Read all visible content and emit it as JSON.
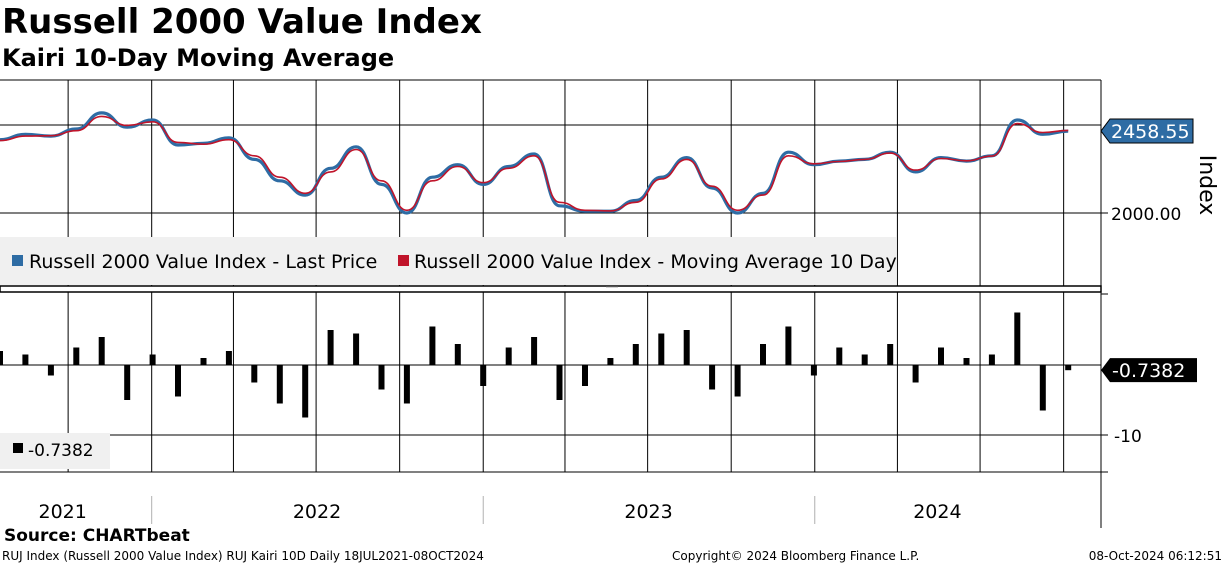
{
  "header": {
    "title": "Russell 2000 Value Index",
    "subtitle": "Kairi 10-Day Moving Average"
  },
  "footer": {
    "source": "Source: CHARTbeat",
    "description": "RUJ Index (Russell 2000 Value Index) RUJ Kairi 10D  Daily 18JUL2021-08OCT2024",
    "copyright": "Copyright© 2024 Bloomberg Finance L.P.",
    "timestamp": "08-Oct-2024 06:12:51"
  },
  "colors": {
    "price": "#2e6ca4",
    "ma": "#c0142a",
    "bars": "#000000",
    "badge": "#2e6ca4",
    "badge_dark": "#000000",
    "legend_bg": "#f0f0f0"
  },
  "chart_data": [
    {
      "type": "line",
      "x_start": "2021-07-18",
      "x_end": "2024-10-08",
      "x_ticks": [
        "2021",
        "2022",
        "2023",
        "2024"
      ],
      "y_ticks": [
        "2000.00"
      ],
      "ylabel": "Index",
      "last_value_label": "2458.55",
      "legend": [
        {
          "name": "Russell 2000 Value Index - Last Price",
          "color": "#2e6ca4"
        },
        {
          "name": "Russell 2000 Value Index - Moving Average 10 Day",
          "color": "#c0142a"
        }
      ],
      "series": [
        {
          "name": "Russell 2000 Value Index - Last Price",
          "x": [
            "2021-07-18",
            "2021-08-15",
            "2021-09-12",
            "2021-10-10",
            "2021-11-07",
            "2021-12-05",
            "2022-01-02",
            "2022-01-30",
            "2022-02-27",
            "2022-03-27",
            "2022-04-24",
            "2022-05-22",
            "2022-06-19",
            "2022-07-17",
            "2022-08-14",
            "2022-09-11",
            "2022-10-09",
            "2022-11-06",
            "2022-12-04",
            "2023-01-01",
            "2023-01-29",
            "2023-02-26",
            "2023-03-26",
            "2023-04-23",
            "2023-05-21",
            "2023-06-18",
            "2023-07-16",
            "2023-08-13",
            "2023-09-10",
            "2023-10-08",
            "2023-11-05",
            "2023-12-03",
            "2023-12-31",
            "2024-01-28",
            "2024-02-25",
            "2024-03-24",
            "2024-04-21",
            "2024-05-19",
            "2024-06-16",
            "2024-07-14",
            "2024-08-11",
            "2024-09-08",
            "2024-10-06"
          ],
          "values": [
            2410,
            2440,
            2430,
            2470,
            2560,
            2480,
            2520,
            2380,
            2390,
            2420,
            2300,
            2180,
            2100,
            2250,
            2370,
            2160,
            2000,
            2200,
            2270,
            2160,
            2260,
            2330,
            2040,
            2010,
            2010,
            2070,
            2200,
            2310,
            2140,
            2000,
            2110,
            2340,
            2270,
            2290,
            2300,
            2340,
            2230,
            2310,
            2290,
            2320,
            2520,
            2440,
            2458
          ]
        },
        {
          "name": "Russell 2000 Value Index - Moving Average 10 Day",
          "x": [
            "2021-07-18",
            "2021-08-15",
            "2021-09-12",
            "2021-10-10",
            "2021-11-07",
            "2021-12-05",
            "2022-01-02",
            "2022-01-30",
            "2022-02-27",
            "2022-03-27",
            "2022-04-24",
            "2022-05-22",
            "2022-06-19",
            "2022-07-17",
            "2022-08-14",
            "2022-09-11",
            "2022-10-09",
            "2022-11-06",
            "2022-12-04",
            "2023-01-01",
            "2023-01-29",
            "2023-02-26",
            "2023-03-26",
            "2023-04-23",
            "2023-05-21",
            "2023-06-18",
            "2023-07-16",
            "2023-08-13",
            "2023-09-10",
            "2023-10-08",
            "2023-11-05",
            "2023-12-03",
            "2023-12-31",
            "2024-01-28",
            "2024-02-25",
            "2024-03-24",
            "2024-04-21",
            "2024-05-19",
            "2024-06-16",
            "2024-07-14",
            "2024-08-11",
            "2024-09-08",
            "2024-10-06"
          ],
          "values": [
            2405,
            2430,
            2432,
            2460,
            2540,
            2490,
            2510,
            2395,
            2385,
            2410,
            2320,
            2200,
            2110,
            2230,
            2355,
            2180,
            2015,
            2180,
            2260,
            2170,
            2250,
            2320,
            2060,
            2015,
            2012,
            2060,
            2190,
            2300,
            2150,
            2015,
            2100,
            2320,
            2275,
            2288,
            2300,
            2335,
            2240,
            2305,
            2292,
            2318,
            2500,
            2450,
            2462
          ]
        }
      ]
    },
    {
      "type": "bar",
      "x_start": "2021-07-18",
      "x_end": "2024-10-08",
      "y_ticks": [
        "-10"
      ],
      "last_value_label": "-0.7382",
      "legend": [
        {
          "name": "-0.7382",
          "color": "#000000"
        }
      ],
      "series": [
        {
          "name": "Kairi 10D",
          "x": [
            "2021-07-18",
            "2021-08-15",
            "2021-09-12",
            "2021-10-10",
            "2021-11-07",
            "2021-12-05",
            "2022-01-02",
            "2022-01-30",
            "2022-02-27",
            "2022-03-27",
            "2022-04-24",
            "2022-05-22",
            "2022-06-19",
            "2022-07-17",
            "2022-08-14",
            "2022-09-11",
            "2022-10-09",
            "2022-11-06",
            "2022-12-04",
            "2023-01-01",
            "2023-01-29",
            "2023-02-26",
            "2023-03-26",
            "2023-04-23",
            "2023-05-21",
            "2023-06-18",
            "2023-07-16",
            "2023-08-13",
            "2023-09-10",
            "2023-10-08",
            "2023-11-05",
            "2023-12-03",
            "2023-12-31",
            "2024-01-28",
            "2024-02-25",
            "2024-03-24",
            "2024-04-21",
            "2024-05-19",
            "2024-06-16",
            "2024-07-14",
            "2024-08-11",
            "2024-09-08",
            "2024-10-06"
          ],
          "values": [
            2.0,
            1.5,
            -1.5,
            2.5,
            4.0,
            -5.0,
            1.5,
            -4.5,
            1.0,
            2.0,
            -2.5,
            -5.5,
            -7.5,
            5.0,
            4.5,
            -3.5,
            -5.5,
            5.5,
            3.0,
            -3.0,
            2.5,
            4.0,
            -5.0,
            -3.0,
            1.0,
            3.0,
            4.5,
            5.0,
            -3.5,
            -4.5,
            3.0,
            5.5,
            -1.5,
            2.5,
            1.5,
            3.0,
            -2.5,
            2.5,
            1.0,
            1.5,
            7.5,
            -6.5,
            -0.7382
          ]
        }
      ]
    }
  ]
}
